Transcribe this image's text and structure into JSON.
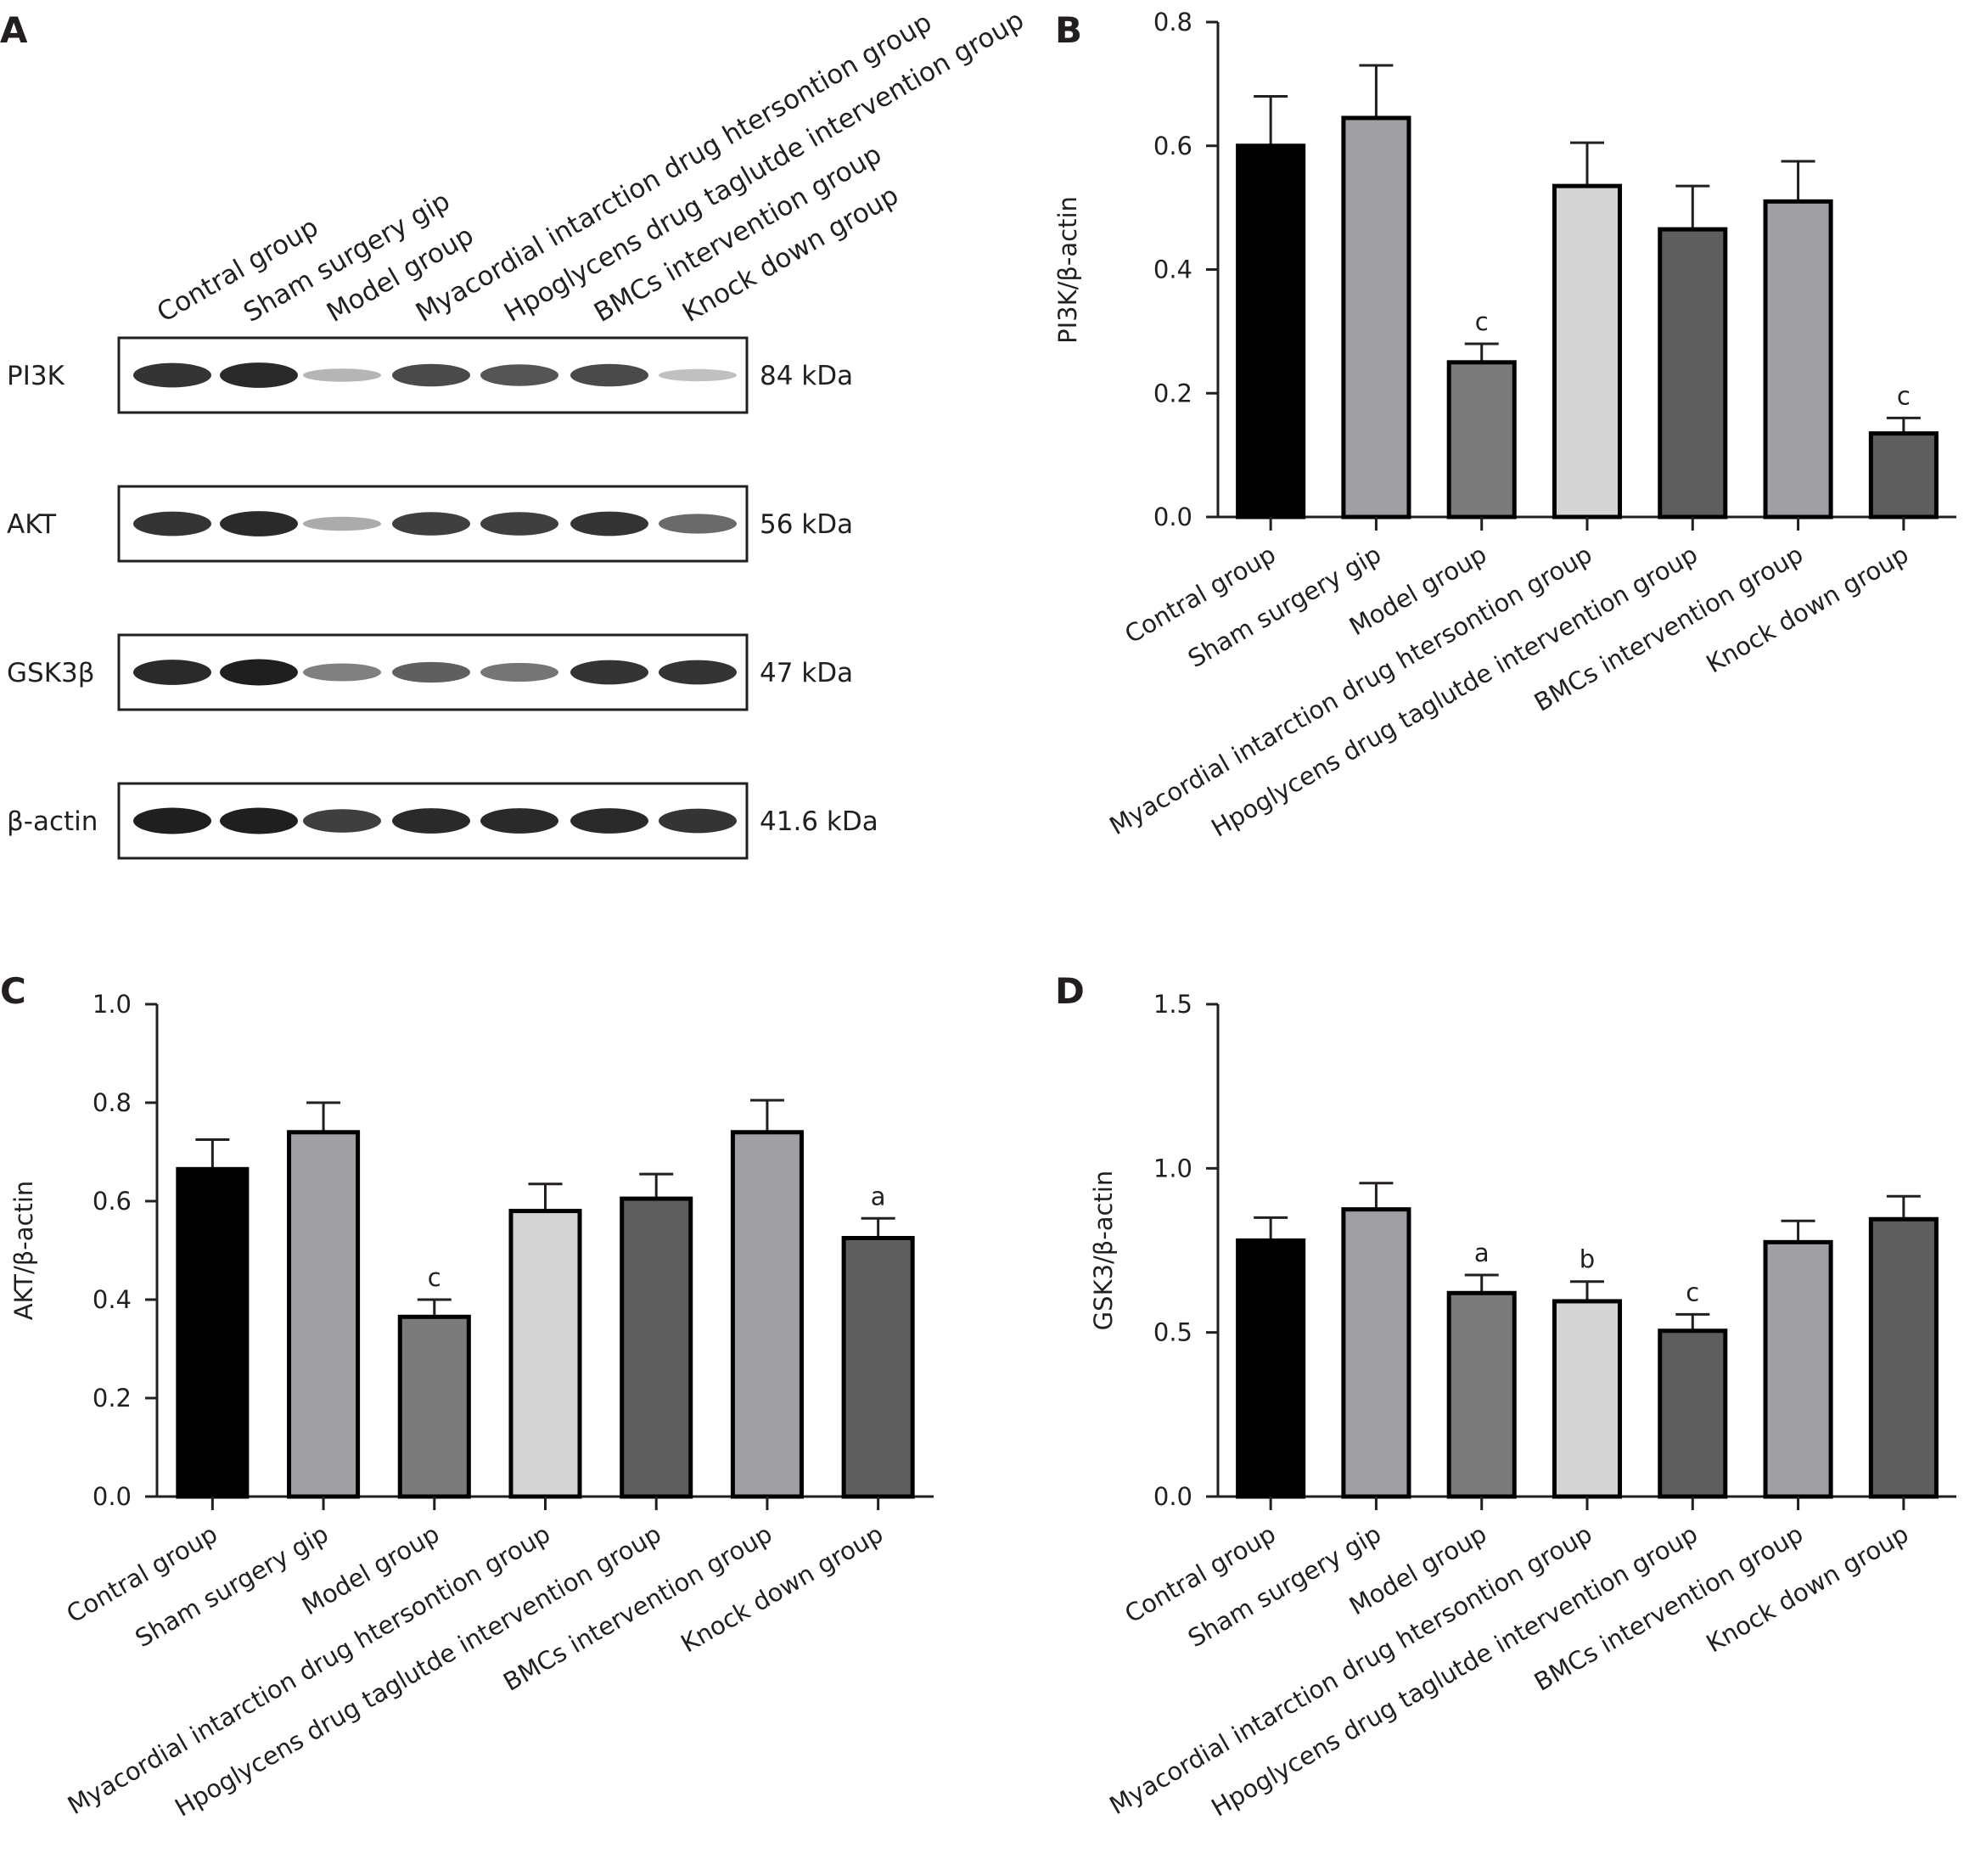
{
  "panels": [
    "A",
    "B",
    "C",
    "D"
  ],
  "blot": {
    "lanes": [
      "Contral group",
      "Sham surgery gip",
      "Model group",
      "Myacordial intarction drug htersontion group",
      "Hpoglycens drug taglutde intervention group",
      "BMCs intervention group",
      "Knock down group"
    ],
    "rows": [
      {
        "protein": "PI3K",
        "kda": "84 kDa",
        "intensity": [
          0.85,
          0.9,
          0.25,
          0.75,
          0.7,
          0.75,
          0.2
        ]
      },
      {
        "protein": "AKT",
        "kda": "56 kDa",
        "intensity": [
          0.85,
          0.9,
          0.3,
          0.8,
          0.8,
          0.85,
          0.6
        ]
      },
      {
        "protein": "GSK3β",
        "kda": "47 kDa",
        "intensity": [
          0.9,
          0.95,
          0.5,
          0.65,
          0.55,
          0.85,
          0.85
        ]
      },
      {
        "protein": "β-actin",
        "kda": "41.6 kDa",
        "intensity": [
          0.95,
          0.95,
          0.8,
          0.9,
          0.9,
          0.9,
          0.85
        ]
      }
    ]
  },
  "chart_data": [
    {
      "panel": "B",
      "type": "bar",
      "ylabel": "PI3K/β-actin",
      "ylim": [
        0,
        0.8
      ],
      "yticks": [
        "0.0",
        "0.2",
        "0.4",
        "0.6",
        "0.8"
      ],
      "categories": [
        "Contral group",
        "Sham surgery gip",
        "Model group",
        "Myacordial intarction drug htersontion group",
        "Hpoglycens drug taglutde intervention group",
        "BMCs intervention group",
        "Knock down group"
      ],
      "values": [
        0.6,
        0.645,
        0.25,
        0.535,
        0.465,
        0.51,
        0.135
      ],
      "errors": [
        0.08,
        0.085,
        0.03,
        0.07,
        0.07,
        0.065,
        0.025
      ],
      "annotations": [
        "",
        "",
        "c",
        "",
        "",
        "",
        "c"
      ],
      "colors": [
        "#000000",
        "#9f9fa4",
        "#7b7b7b",
        "#d4d4d4",
        "#5e5e5e",
        "#9f9fa4",
        "#5e5e5e"
      ],
      "grid": false
    },
    {
      "panel": "C",
      "type": "bar",
      "ylabel": "AKT/β-actin",
      "ylim": [
        0,
        1.0
      ],
      "yticks": [
        "0.0",
        "0.2",
        "0.4",
        "0.6",
        "0.8",
        "1.0"
      ],
      "categories": [
        "Contral group",
        "Sham surgery gip",
        "Model group",
        "Myacordial intarction drug htersontion group",
        "Hpoglycens drug taglutde intervention group",
        "BMCs intervention group",
        "Knock down group"
      ],
      "values": [
        0.665,
        0.74,
        0.365,
        0.58,
        0.605,
        0.74,
        0.525
      ],
      "errors": [
        0.06,
        0.06,
        0.035,
        0.055,
        0.05,
        0.065,
        0.04
      ],
      "annotations": [
        "",
        "",
        "c",
        "",
        "",
        "",
        "a"
      ],
      "colors": [
        "#000000",
        "#9f9fa4",
        "#7b7b7b",
        "#d4d4d4",
        "#5e5e5e",
        "#9f9fa4",
        "#5e5e5e"
      ],
      "grid": false
    },
    {
      "panel": "D",
      "type": "bar",
      "ylabel": "GSK3/β-actin",
      "ylim": [
        0,
        1.5
      ],
      "yticks": [
        "0.0",
        "0.5",
        "1.0",
        "1.5"
      ],
      "categories": [
        "Contral group",
        "Sham surgery gip",
        "Model group",
        "Myacordial intarction drug htersontion group",
        "Hpoglycens drug taglutde intervention group",
        "BMCs intervention group",
        "Knock down group"
      ],
      "values": [
        0.78,
        0.875,
        0.62,
        0.595,
        0.505,
        0.775,
        0.845
      ],
      "errors": [
        0.07,
        0.08,
        0.055,
        0.06,
        0.05,
        0.065,
        0.07
      ],
      "annotations": [
        "",
        "",
        "a",
        "b",
        "c",
        "",
        ""
      ],
      "colors": [
        "#000000",
        "#9f9fa4",
        "#7b7b7b",
        "#d4d4d4",
        "#5e5e5e",
        "#9f9fa4",
        "#5e5e5e"
      ],
      "grid": false
    }
  ]
}
